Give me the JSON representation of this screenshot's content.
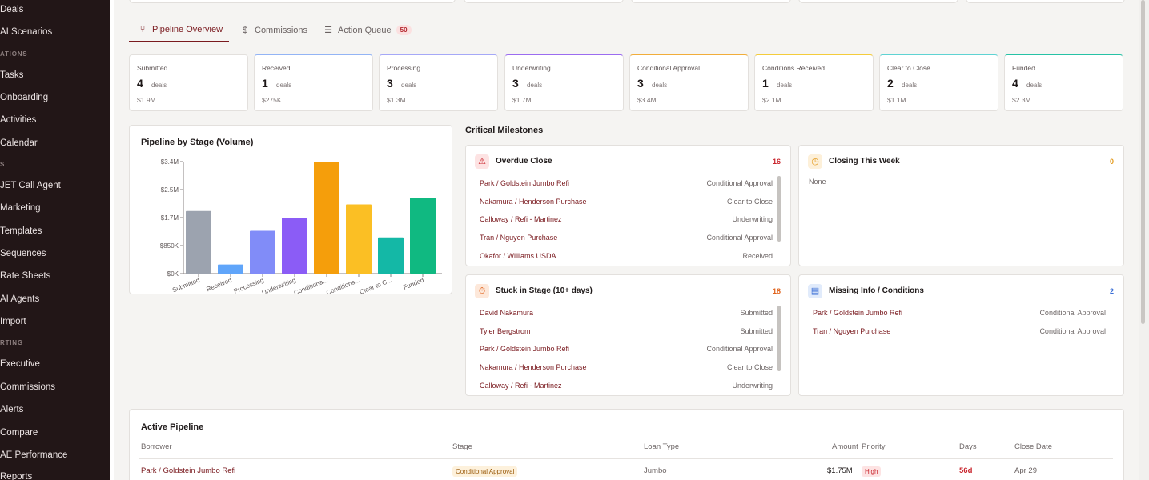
{
  "sidebar": {
    "items": [
      {
        "label": "Deals",
        "type": "item"
      },
      {
        "label": "AI Scenarios",
        "type": "item"
      },
      {
        "label": "ATIONS",
        "type": "section"
      },
      {
        "label": "Tasks",
        "type": "item"
      },
      {
        "label": "Onboarding",
        "type": "item"
      },
      {
        "label": "Activities",
        "type": "item"
      },
      {
        "label": "Calendar",
        "type": "item"
      },
      {
        "label": "S",
        "type": "section"
      },
      {
        "label": "JET Call Agent",
        "type": "item"
      },
      {
        "label": "Marketing",
        "type": "item"
      },
      {
        "label": "Templates",
        "type": "item"
      },
      {
        "label": "Sequences",
        "type": "item"
      },
      {
        "label": "Rate Sheets",
        "type": "item"
      },
      {
        "label": "AI Agents",
        "type": "item"
      },
      {
        "label": "Import",
        "type": "item"
      },
      {
        "label": "RTING",
        "type": "section"
      },
      {
        "label": "Executive",
        "type": "item"
      },
      {
        "label": "Commissions",
        "type": "item"
      },
      {
        "label": "Alerts",
        "type": "item"
      },
      {
        "label": "Compare",
        "type": "item"
      },
      {
        "label": "AE Performance",
        "type": "item"
      },
      {
        "label": "Reports",
        "type": "item"
      }
    ]
  },
  "tabs": [
    {
      "label": "Pipeline Overview",
      "icon": "pipeline-icon",
      "active": true
    },
    {
      "label": "Commissions",
      "icon": "dollar-icon",
      "active": false
    },
    {
      "label": "Action Queue",
      "icon": "list-check-icon",
      "active": false,
      "badge": "50"
    }
  ],
  "stages": [
    {
      "name": "Submitted",
      "count": "4",
      "unit": "deals",
      "amount": "$1.9M",
      "color": "#e3e0dd"
    },
    {
      "name": "Received",
      "count": "1",
      "unit": "deals",
      "amount": "$275K",
      "color": "#93b4f5"
    },
    {
      "name": "Processing",
      "count": "3",
      "unit": "deals",
      "amount": "$1.3M",
      "color": "#a5a8f7"
    },
    {
      "name": "Underwriting",
      "count": "3",
      "unit": "deals",
      "amount": "$1.7M",
      "color": "#9b6cf0"
    },
    {
      "name": "Conditional Approval",
      "count": "3",
      "unit": "deals",
      "amount": "$3.4M",
      "color": "#f1ad3a"
    },
    {
      "name": "Conditions Received",
      "count": "1",
      "unit": "deals",
      "amount": "$2.1M",
      "color": "#f4cc3c"
    },
    {
      "name": "Clear to Close",
      "count": "2",
      "unit": "deals",
      "amount": "$1.1M",
      "color": "#5fd3d3"
    },
    {
      "name": "Funded",
      "count": "4",
      "unit": "deals",
      "amount": "$2.3M",
      "color": "#27c2a6"
    }
  ],
  "chart_panel": {
    "title": "Pipeline by Stage (Volume)"
  },
  "chart_data": {
    "type": "bar",
    "title": "Pipeline by Stage (Volume)",
    "categories": [
      "Submitted",
      "Received",
      "Processing",
      "Underwriting",
      "Conditiona...",
      "Conditions...",
      "Clear to C...",
      "Funded"
    ],
    "values": [
      1.9,
      0.275,
      1.3,
      1.7,
      3.4,
      2.1,
      1.1,
      2.3
    ],
    "colors": [
      "#9ca3af",
      "#60a5fa",
      "#818cf8",
      "#8b5cf6",
      "#f59e0b",
      "#fbbf24",
      "#14b8a6",
      "#10b981"
    ],
    "yticks": [
      {
        "value": 0,
        "label": "$0K"
      },
      {
        "value": 0.85,
        "label": "$850K"
      },
      {
        "value": 1.7,
        "label": "$1.7M"
      },
      {
        "value": 2.55,
        "label": "$2.5M"
      },
      {
        "value": 3.4,
        "label": "$3.4M"
      }
    ],
    "ylim": [
      0,
      3.4
    ],
    "grid": false,
    "xlabel": "",
    "ylabel": ""
  },
  "milestones": {
    "title": "Critical Milestones",
    "overdue": {
      "title": "Overdue Close",
      "count": "16",
      "icon": "alert-triangle-icon",
      "rows": [
        {
          "name": "Park / Goldstein Jumbo Refi",
          "stage": "Conditional Approval"
        },
        {
          "name": "Nakamura / Henderson Purchase",
          "stage": "Clear to Close"
        },
        {
          "name": "Calloway / Refi - Martinez",
          "stage": "Underwriting"
        },
        {
          "name": "Tran / Nguyen Purchase",
          "stage": "Conditional Approval"
        },
        {
          "name": "Okafor / Williams USDA",
          "stage": "Received"
        }
      ]
    },
    "closing": {
      "title": "Closing This Week",
      "count": "0",
      "icon": "clock-icon",
      "empty": "None"
    },
    "stuck": {
      "title": "Stuck in Stage (10+ days)",
      "count": "18",
      "icon": "stopwatch-icon",
      "rows": [
        {
          "name": "David Nakamura",
          "stage": "Submitted"
        },
        {
          "name": "Tyler Bergstrom",
          "stage": "Submitted"
        },
        {
          "name": "Park / Goldstein Jumbo Refi",
          "stage": "Conditional Approval"
        },
        {
          "name": "Nakamura / Henderson Purchase",
          "stage": "Clear to Close"
        },
        {
          "name": "Calloway / Refi - Martinez",
          "stage": "Underwriting"
        }
      ]
    },
    "missing": {
      "title": "Missing Info / Conditions",
      "count": "2",
      "icon": "document-icon",
      "rows": [
        {
          "name": "Park / Goldstein Jumbo Refi",
          "stage": "Conditional Approval"
        },
        {
          "name": "Tran / Nguyen Purchase",
          "stage": "Conditional Approval"
        }
      ]
    }
  },
  "active_pipeline": {
    "title": "Active Pipeline",
    "columns": [
      "Borrower",
      "Stage",
      "Loan Type",
      "Amount",
      "Priority",
      "Days",
      "Close Date"
    ],
    "rows": [
      {
        "borrower": "Park / Goldstein Jumbo Refi",
        "stage": "Conditional Approval",
        "loan_type": "Jumbo",
        "amount": "$1.75M",
        "priority": "High",
        "days": "56d",
        "close_date": "Apr 29"
      }
    ]
  }
}
